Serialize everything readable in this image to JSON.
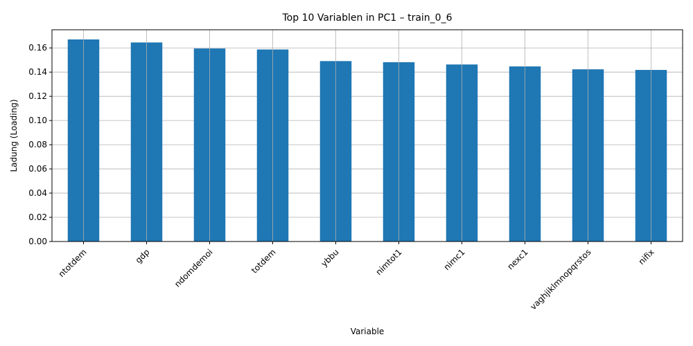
{
  "chart_data": {
    "type": "bar",
    "title": "Top 10 Variablen in PC1 – train_0_6",
    "xlabel": "Variable",
    "ylabel": "Ladung (Loading)",
    "categories": [
      "ntotdem",
      "gdp",
      "ndomdemoi",
      "totdem",
      "ybbu",
      "nimtot1",
      "nimc1",
      "nexc1",
      "vaghjiklmnopqrstos",
      "nifix"
    ],
    "values": [
      0.167,
      0.1645,
      0.1595,
      0.1587,
      0.1491,
      0.1482,
      0.1463,
      0.1447,
      0.1423,
      0.1418
    ],
    "ylim": [
      0,
      0.175
    ],
    "yticks": [
      0.0,
      0.02,
      0.04,
      0.06,
      0.08,
      0.1,
      0.12,
      0.14,
      0.16
    ],
    "ytick_labels": [
      "0.00",
      "0.02",
      "0.04",
      "0.06",
      "0.08",
      "0.10",
      "0.12",
      "0.14",
      "0.16"
    ],
    "grid": true,
    "colors": {
      "bar": "#1f77b4",
      "grid": "#b0b0b0",
      "axis": "#000000"
    }
  }
}
